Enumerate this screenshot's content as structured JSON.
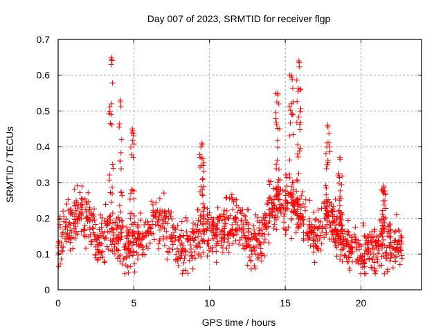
{
  "chart_data": {
    "type": "scatter",
    "title": "Day 007 of 2023, SRMTID for receiver flgp",
    "xlabel": "GPS time / hours",
    "ylabel": "SRMTID / TECUs",
    "xlim": [
      0,
      24
    ],
    "ylim": [
      0,
      0.7
    ],
    "xticks": [
      0,
      5,
      10,
      15,
      20
    ],
    "xtick_labels": [
      "0",
      "5",
      "10",
      "15",
      "20"
    ],
    "yticks": [
      0,
      0.1,
      0.2,
      0.3,
      0.4,
      0.5,
      0.6,
      0.7
    ],
    "ytick_labels": [
      "0",
      "0.1",
      "0.2",
      "0.3",
      "0.4",
      "0.5",
      "0.6",
      "0.7"
    ],
    "grid": true,
    "marker": "+",
    "color": "#ff0000",
    "series": [
      {
        "name": "SRMTID",
        "baseline": [
          [
            0.0,
            0.13
          ],
          [
            0.5,
            0.16
          ],
          [
            1.0,
            0.19
          ],
          [
            1.5,
            0.22
          ],
          [
            2.0,
            0.2
          ],
          [
            2.5,
            0.16
          ],
          [
            3.0,
            0.14
          ],
          [
            3.5,
            0.17
          ],
          [
            4.0,
            0.14
          ],
          [
            4.5,
            0.12
          ],
          [
            5.0,
            0.12
          ],
          [
            5.5,
            0.14
          ],
          [
            6.0,
            0.16
          ],
          [
            6.5,
            0.2
          ],
          [
            7.0,
            0.18
          ],
          [
            7.5,
            0.14
          ],
          [
            8.0,
            0.11
          ],
          [
            8.5,
            0.11
          ],
          [
            9.0,
            0.14
          ],
          [
            9.5,
            0.18
          ],
          [
            10.0,
            0.15
          ],
          [
            10.5,
            0.16
          ],
          [
            11.0,
            0.18
          ],
          [
            11.5,
            0.2
          ],
          [
            12.0,
            0.17
          ],
          [
            12.5,
            0.14
          ],
          [
            13.0,
            0.13
          ],
          [
            13.5,
            0.15
          ],
          [
            14.0,
            0.22
          ],
          [
            14.5,
            0.25
          ],
          [
            15.0,
            0.24
          ],
          [
            15.5,
            0.23
          ],
          [
            16.0,
            0.22
          ],
          [
            16.5,
            0.17
          ],
          [
            17.0,
            0.15
          ],
          [
            17.5,
            0.19
          ],
          [
            18.0,
            0.2
          ],
          [
            18.5,
            0.15
          ],
          [
            19.0,
            0.13
          ],
          [
            19.5,
            0.12
          ],
          [
            20.0,
            0.09
          ],
          [
            20.5,
            0.11
          ],
          [
            21.0,
            0.12
          ],
          [
            21.5,
            0.14
          ],
          [
            22.0,
            0.13
          ],
          [
            22.5,
            0.13
          ],
          [
            22.8,
            0.12
          ]
        ],
        "spread": 0.05,
        "spikes": [
          {
            "x": 3.5,
            "peak": 0.65
          },
          {
            "x": 4.1,
            "peak": 0.53
          },
          {
            "x": 4.9,
            "peak": 0.45
          },
          {
            "x": 9.5,
            "peak": 0.41
          },
          {
            "x": 14.5,
            "peak": 0.55
          },
          {
            "x": 15.4,
            "peak": 0.6
          },
          {
            "x": 15.9,
            "peak": 0.64
          },
          {
            "x": 17.8,
            "peak": 0.46
          },
          {
            "x": 18.6,
            "peak": 0.37
          },
          {
            "x": 21.5,
            "peak": 0.29
          }
        ],
        "points_per_hour": 60
      }
    ]
  }
}
